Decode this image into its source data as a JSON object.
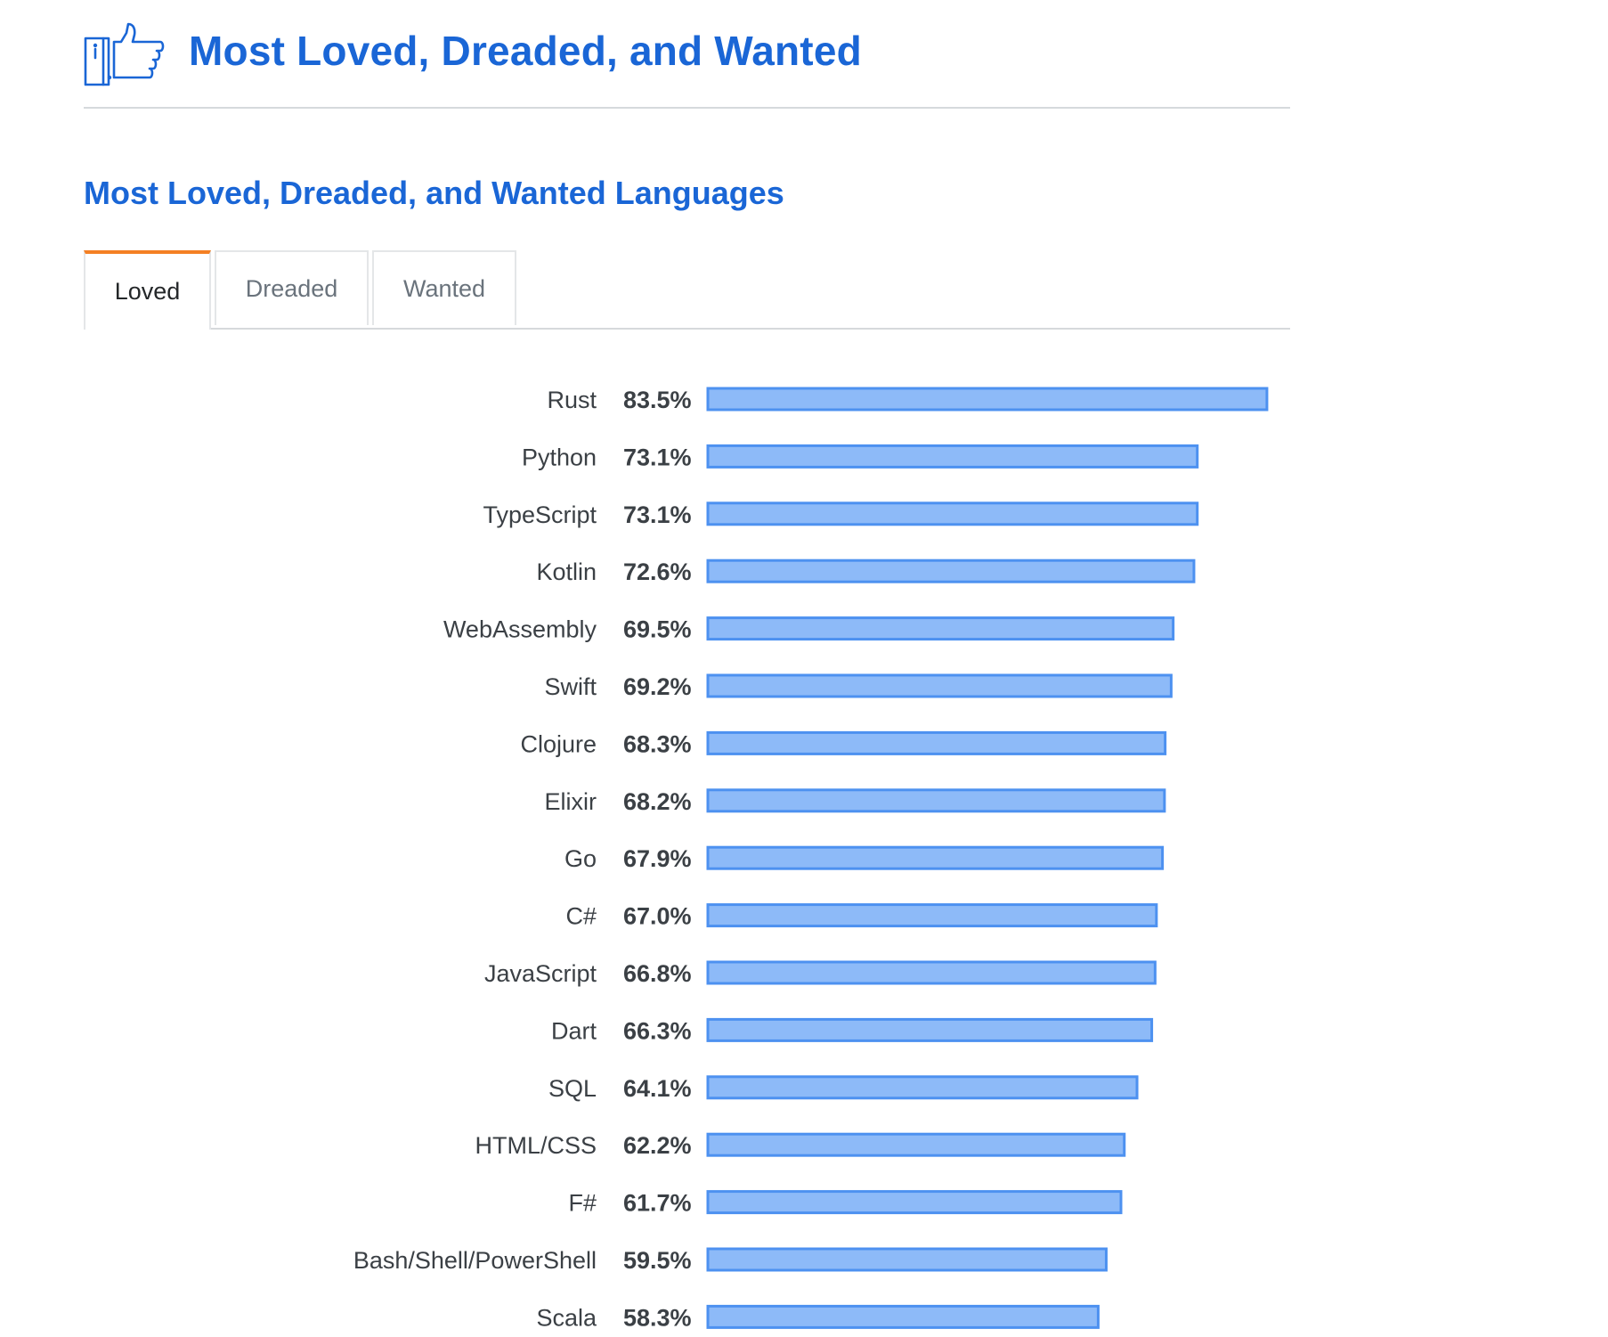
{
  "header": {
    "title": "Most Loved, Dreaded, and Wanted",
    "icon": "thumbs-up-icon"
  },
  "section": {
    "title": "Most Loved, Dreaded, and Wanted Languages"
  },
  "tabs": [
    {
      "label": "Loved",
      "active": true
    },
    {
      "label": "Dreaded",
      "active": false
    },
    {
      "label": "Wanted",
      "active": false
    }
  ],
  "colors": {
    "title": "#1a66d6",
    "bar_fill": "#8dbaf8",
    "bar_stroke": "#4d91f0",
    "tab_active_accent": "#f48024",
    "text": "#3b4045"
  },
  "chart_data": {
    "type": "bar",
    "orientation": "horizontal",
    "categories": [
      "Rust",
      "Python",
      "TypeScript",
      "Kotlin",
      "WebAssembly",
      "Swift",
      "Clojure",
      "Elixir",
      "Go",
      "C#",
      "JavaScript",
      "Dart",
      "SQL",
      "HTML/CSS",
      "F#",
      "Bash/Shell/PowerShell",
      "Scala"
    ],
    "values": [
      83.5,
      73.1,
      73.1,
      72.6,
      69.5,
      69.2,
      68.3,
      68.2,
      67.9,
      67.0,
      66.8,
      66.3,
      64.1,
      62.2,
      61.7,
      59.5,
      58.3
    ],
    "value_labels": [
      "83.5%",
      "73.1%",
      "73.1%",
      "72.6%",
      "69.5%",
      "69.2%",
      "68.3%",
      "68.2%",
      "67.9%",
      "67.0%",
      "66.8%",
      "66.3%",
      "64.1%",
      "62.2%",
      "61.7%",
      "59.5%",
      "58.3%"
    ],
    "unit": "%",
    "title": "",
    "xlabel": "",
    "ylabel": "",
    "grid": false
  }
}
